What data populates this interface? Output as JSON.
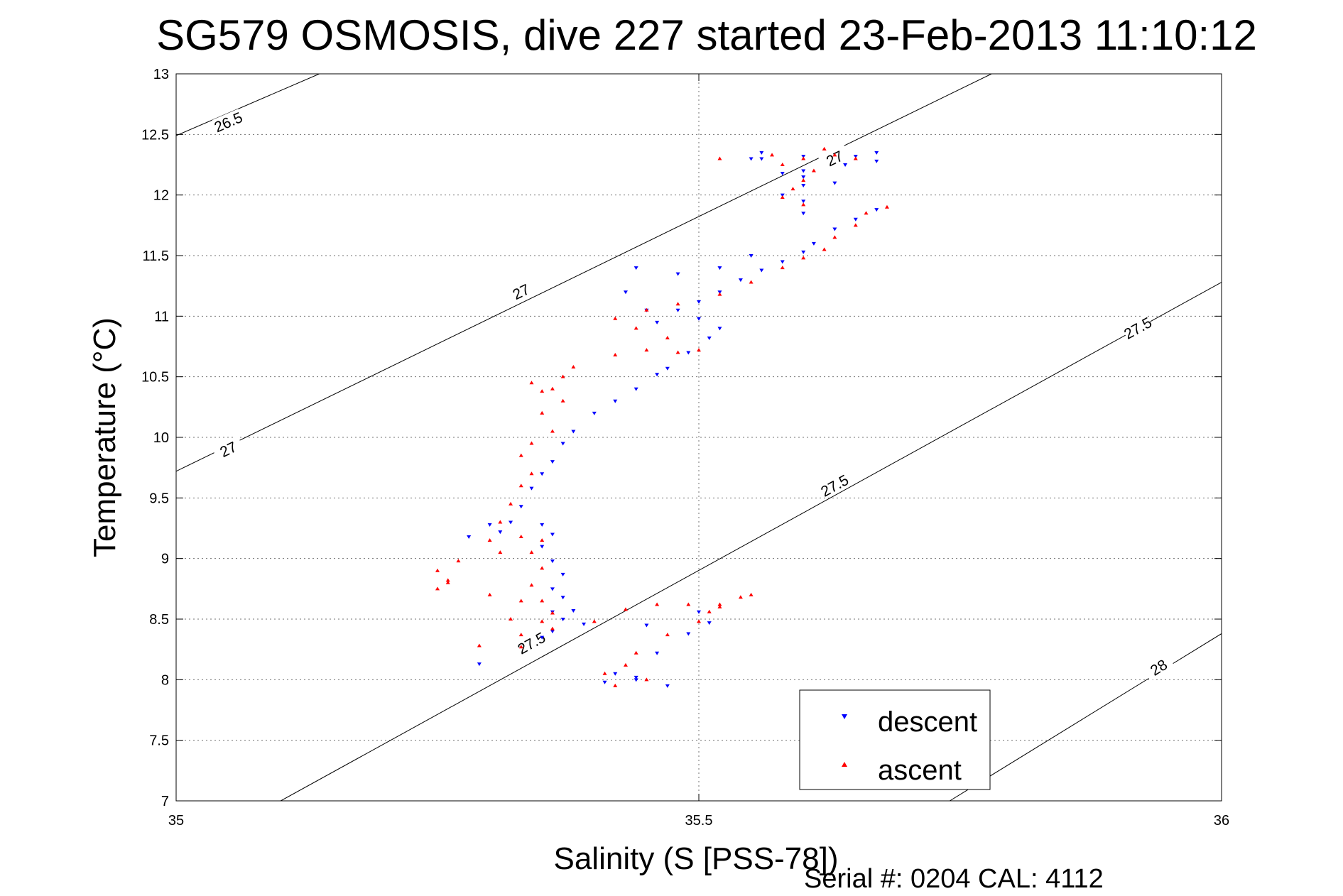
{
  "chart_data": {
    "type": "scatter",
    "title": "SG579 OSMOSIS, dive 227 started 23-Feb-2013 11:10:12",
    "xlabel": "Salinity (S [PSS-78])",
    "ylabel": "Temperature (°C)",
    "xlim": [
      35,
      36
    ],
    "ylim": [
      7,
      13
    ],
    "xticks": [
      "35",
      "35.5",
      "36"
    ],
    "yticks": [
      "7",
      "7.5",
      "8",
      "8.5",
      "9",
      "9.5",
      "10",
      "10.5",
      "11",
      "11.5",
      "12",
      "12.5",
      "13"
    ],
    "grid": true,
    "legend_position": "bottom-right",
    "footer": "Serial #: 0204  CAL: 4112",
    "density_contours": [
      {
        "label": "26.5",
        "label_position": [
          35.05,
          12.6
        ]
      },
      {
        "label": "27",
        "label_positions": [
          [
            35.05,
            9.9
          ],
          [
            35.33,
            11.2
          ],
          [
            35.63,
            12.3
          ]
        ]
      },
      {
        "label": "27.5",
        "label_positions": [
          [
            35.34,
            8.3
          ],
          [
            35.63,
            9.6
          ],
          [
            35.92,
            10.9
          ]
        ]
      },
      {
        "label": "28",
        "label_position": [
          35.94,
          8.1
        ]
      }
    ],
    "series": [
      {
        "name": "descent",
        "color": "#0000ff",
        "marker": "triangle-down",
        "points": [
          [
            35.29,
            8.13
          ],
          [
            35.41,
            7.98
          ],
          [
            35.44,
            8.02
          ],
          [
            35.47,
            7.95
          ],
          [
            35.42,
            8.05
          ],
          [
            35.44,
            8.0
          ],
          [
            35.46,
            8.22
          ],
          [
            35.49,
            8.38
          ],
          [
            35.51,
            8.47
          ],
          [
            35.5,
            8.56
          ],
          [
            35.45,
            8.45
          ],
          [
            35.39,
            8.46
          ],
          [
            35.36,
            8.4
          ],
          [
            35.35,
            8.35
          ],
          [
            35.37,
            8.5
          ],
          [
            35.38,
            8.57
          ],
          [
            35.36,
            8.56
          ],
          [
            35.37,
            8.68
          ],
          [
            35.36,
            8.75
          ],
          [
            35.37,
            8.87
          ],
          [
            35.36,
            8.98
          ],
          [
            35.35,
            9.1
          ],
          [
            35.36,
            9.2
          ],
          [
            35.35,
            9.28
          ],
          [
            35.32,
            9.3
          ],
          [
            35.31,
            9.22
          ],
          [
            35.28,
            9.18
          ],
          [
            35.3,
            9.28
          ],
          [
            35.33,
            9.43
          ],
          [
            35.34,
            9.58
          ],
          [
            35.35,
            9.7
          ],
          [
            35.36,
            9.8
          ],
          [
            35.37,
            9.95
          ],
          [
            35.38,
            10.05
          ],
          [
            35.4,
            10.2
          ],
          [
            35.42,
            10.3
          ],
          [
            35.44,
            10.4
          ],
          [
            35.46,
            10.52
          ],
          [
            35.47,
            10.57
          ],
          [
            35.49,
            10.7
          ],
          [
            35.51,
            10.82
          ],
          [
            35.52,
            10.9
          ],
          [
            35.5,
            10.98
          ],
          [
            35.46,
            10.95
          ],
          [
            35.48,
            11.05
          ],
          [
            35.5,
            11.12
          ],
          [
            35.52,
            11.2
          ],
          [
            35.54,
            11.3
          ],
          [
            35.56,
            11.38
          ],
          [
            35.58,
            11.45
          ],
          [
            35.6,
            11.53
          ],
          [
            35.61,
            11.6
          ],
          [
            35.63,
            11.72
          ],
          [
            35.65,
            11.8
          ],
          [
            35.67,
            11.88
          ],
          [
            35.6,
            11.85
          ],
          [
            35.6,
            11.95
          ],
          [
            35.58,
            12.0
          ],
          [
            35.6,
            12.08
          ],
          [
            35.63,
            12.1
          ],
          [
            35.6,
            12.15
          ],
          [
            35.58,
            12.18
          ],
          [
            35.6,
            12.2
          ],
          [
            35.64,
            12.25
          ],
          [
            35.65,
            12.32
          ],
          [
            35.67,
            12.35
          ],
          [
            35.6,
            12.32
          ],
          [
            35.56,
            12.3
          ],
          [
            35.55,
            12.3
          ],
          [
            35.56,
            12.35
          ],
          [
            35.67,
            12.28
          ],
          [
            35.55,
            11.5
          ],
          [
            35.52,
            11.4
          ],
          [
            35.48,
            11.35
          ],
          [
            35.44,
            11.4
          ],
          [
            35.43,
            11.2
          ],
          [
            35.45,
            11.05
          ]
        ]
      },
      {
        "name": "ascent",
        "color": "#ff0000",
        "marker": "triangle-up",
        "points": [
          [
            35.41,
            8.05
          ],
          [
            35.42,
            7.95
          ],
          [
            35.45,
            8.0
          ],
          [
            35.43,
            8.12
          ],
          [
            35.44,
            8.22
          ],
          [
            35.47,
            8.37
          ],
          [
            35.5,
            8.48
          ],
          [
            35.51,
            8.56
          ],
          [
            35.52,
            8.6
          ],
          [
            35.54,
            8.68
          ],
          [
            35.55,
            8.7
          ],
          [
            35.52,
            8.62
          ],
          [
            35.49,
            8.62
          ],
          [
            35.46,
            8.62
          ],
          [
            35.43,
            8.58
          ],
          [
            35.4,
            8.48
          ],
          [
            35.36,
            8.42
          ],
          [
            35.35,
            8.48
          ],
          [
            35.36,
            8.55
          ],
          [
            35.35,
            8.65
          ],
          [
            35.34,
            8.78
          ],
          [
            35.35,
            8.92
          ],
          [
            35.34,
            9.05
          ],
          [
            35.35,
            9.15
          ],
          [
            35.33,
            9.18
          ],
          [
            35.31,
            9.05
          ],
          [
            35.27,
            8.98
          ],
          [
            35.25,
            8.9
          ],
          [
            35.26,
            8.82
          ],
          [
            35.3,
            8.7
          ],
          [
            35.33,
            8.65
          ],
          [
            35.32,
            8.5
          ],
          [
            35.33,
            8.37
          ],
          [
            35.33,
            8.27
          ],
          [
            35.29,
            8.28
          ],
          [
            35.31,
            9.3
          ],
          [
            35.3,
            9.15
          ],
          [
            35.32,
            9.45
          ],
          [
            35.33,
            9.6
          ],
          [
            35.34,
            9.7
          ],
          [
            35.33,
            9.85
          ],
          [
            35.34,
            9.95
          ],
          [
            35.36,
            10.05
          ],
          [
            35.35,
            10.2
          ],
          [
            35.37,
            10.3
          ],
          [
            35.36,
            10.4
          ],
          [
            35.37,
            10.5
          ],
          [
            35.38,
            10.58
          ],
          [
            35.42,
            10.68
          ],
          [
            35.45,
            10.72
          ],
          [
            35.48,
            10.7
          ],
          [
            35.5,
            10.72
          ],
          [
            35.47,
            10.82
          ],
          [
            35.44,
            10.9
          ],
          [
            35.42,
            10.98
          ],
          [
            35.45,
            11.05
          ],
          [
            35.48,
            11.1
          ],
          [
            35.52,
            11.18
          ],
          [
            35.55,
            11.28
          ],
          [
            35.58,
            11.4
          ],
          [
            35.6,
            11.48
          ],
          [
            35.62,
            11.55
          ],
          [
            35.63,
            11.65
          ],
          [
            35.65,
            11.75
          ],
          [
            35.66,
            11.85
          ],
          [
            35.6,
            11.92
          ],
          [
            35.58,
            11.98
          ],
          [
            35.59,
            12.05
          ],
          [
            35.6,
            12.12
          ],
          [
            35.61,
            12.2
          ],
          [
            35.58,
            12.25
          ],
          [
            35.57,
            12.33
          ],
          [
            35.6,
            12.3
          ],
          [
            35.63,
            12.33
          ],
          [
            35.65,
            12.3
          ],
          [
            35.62,
            12.38
          ],
          [
            35.52,
            12.3
          ],
          [
            35.68,
            11.9
          ],
          [
            35.26,
            8.8
          ],
          [
            35.25,
            8.75
          ],
          [
            35.34,
            10.45
          ],
          [
            35.35,
            10.38
          ]
        ]
      }
    ]
  }
}
